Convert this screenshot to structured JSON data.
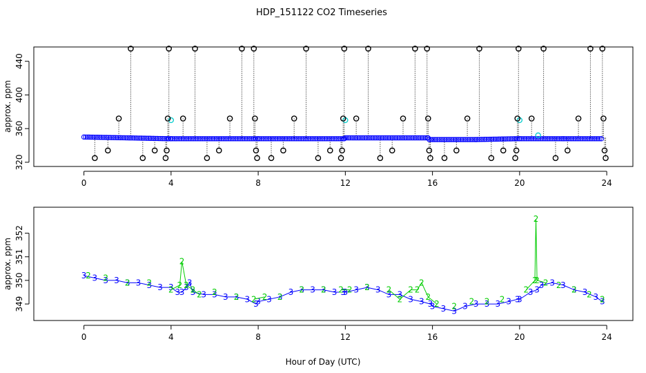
{
  "figure": {
    "title": "HDP_151122  CO2 Timeseries",
    "xlabel": "Hour of Day (UTC)"
  },
  "chart_data": [
    {
      "type": "scatter",
      "ylabel": "approx. ppm",
      "xlim": [
        -2.3,
        25.2
      ],
      "ylim": [
        315,
        457
      ],
      "xticks": [
        0,
        4,
        8,
        12,
        16,
        20,
        24
      ],
      "yticks": [
        320,
        360,
        400,
        440
      ],
      "colors": {
        "baseline": "#0000ff",
        "spike": "#000000",
        "mid": "#00cccc",
        "drop": "#808080"
      },
      "baseline": {
        "x": [
          0.0,
          2.0,
          3.85,
          3.9,
          4.0,
          6.0,
          7.9,
          8.0,
          10.0,
          11.95,
          12.0,
          14.0,
          15.8,
          15.85,
          16.0,
          18.0,
          19.9,
          20.0,
          22.0,
          23.8
        ],
        "y": [
          350,
          349,
          348,
          348,
          348,
          348,
          348,
          348,
          348,
          348,
          349,
          349,
          349,
          347,
          347,
          347,
          348,
          348,
          348,
          348
        ]
      },
      "spikes": [
        {
          "x": 0.5,
          "y": 325
        },
        {
          "x": 1.1,
          "y": 334
        },
        {
          "x": 1.6,
          "y": 372
        },
        {
          "x": 2.15,
          "y": 455
        },
        {
          "x": 2.7,
          "y": 325
        },
        {
          "x": 3.25,
          "y": 334
        },
        {
          "x": 3.75,
          "y": 325
        },
        {
          "x": 3.8,
          "y": 334
        },
        {
          "x": 3.85,
          "y": 372
        },
        {
          "x": 3.9,
          "y": 455
        },
        {
          "x": 4.55,
          "y": 372
        },
        {
          "x": 5.1,
          "y": 455
        },
        {
          "x": 5.65,
          "y": 325
        },
        {
          "x": 6.2,
          "y": 334
        },
        {
          "x": 6.7,
          "y": 372
        },
        {
          "x": 7.25,
          "y": 455
        },
        {
          "x": 7.8,
          "y": 455
        },
        {
          "x": 7.85,
          "y": 372
        },
        {
          "x": 7.9,
          "y": 334
        },
        {
          "x": 7.95,
          "y": 325
        },
        {
          "x": 8.6,
          "y": 325
        },
        {
          "x": 9.15,
          "y": 334
        },
        {
          "x": 9.65,
          "y": 372
        },
        {
          "x": 10.2,
          "y": 455
        },
        {
          "x": 10.75,
          "y": 325
        },
        {
          "x": 11.3,
          "y": 334
        },
        {
          "x": 11.8,
          "y": 325
        },
        {
          "x": 11.85,
          "y": 334
        },
        {
          "x": 11.9,
          "y": 372
        },
        {
          "x": 11.95,
          "y": 455
        },
        {
          "x": 12.5,
          "y": 372
        },
        {
          "x": 13.05,
          "y": 455
        },
        {
          "x": 13.6,
          "y": 325
        },
        {
          "x": 14.15,
          "y": 334
        },
        {
          "x": 14.65,
          "y": 372
        },
        {
          "x": 15.2,
          "y": 455
        },
        {
          "x": 15.75,
          "y": 455
        },
        {
          "x": 15.8,
          "y": 372
        },
        {
          "x": 15.85,
          "y": 334
        },
        {
          "x": 15.9,
          "y": 325
        },
        {
          "x": 16.55,
          "y": 325
        },
        {
          "x": 17.1,
          "y": 334
        },
        {
          "x": 17.6,
          "y": 372
        },
        {
          "x": 18.15,
          "y": 455
        },
        {
          "x": 18.7,
          "y": 325
        },
        {
          "x": 19.25,
          "y": 334
        },
        {
          "x": 19.8,
          "y": 325
        },
        {
          "x": 19.85,
          "y": 334
        },
        {
          "x": 19.9,
          "y": 372
        },
        {
          "x": 19.95,
          "y": 455
        },
        {
          "x": 20.55,
          "y": 372
        },
        {
          "x": 21.1,
          "y": 455
        },
        {
          "x": 21.65,
          "y": 325
        },
        {
          "x": 22.2,
          "y": 334
        },
        {
          "x": 22.7,
          "y": 372
        },
        {
          "x": 23.25,
          "y": 455
        },
        {
          "x": 23.8,
          "y": 455
        },
        {
          "x": 23.85,
          "y": 372
        },
        {
          "x": 23.9,
          "y": 334
        },
        {
          "x": 23.95,
          "y": 325
        }
      ],
      "mid_points": [
        {
          "x": 4.0,
          "y": 370
        },
        {
          "x": 12.0,
          "y": 370
        },
        {
          "x": 20.0,
          "y": 370
        },
        {
          "x": 20.85,
          "y": 352
        }
      ]
    },
    {
      "type": "line",
      "ylabel": "approx. ppm",
      "xlim": [
        -2.3,
        25.2
      ],
      "ylim": [
        348.3,
        353.1
      ],
      "xticks": [
        0,
        4,
        8,
        12,
        16,
        20,
        24
      ],
      "yticks": [
        349,
        350,
        351,
        352
      ],
      "colors": {
        "series_3": "#0000ff",
        "series_2": "#00cc00"
      },
      "series": [
        {
          "marker": "3",
          "x": [
            0.0,
            0.5,
            1.0,
            1.5,
            2.0,
            2.5,
            3.0,
            3.5,
            4.0,
            4.3,
            4.5,
            4.7,
            4.85,
            5.0,
            5.5,
            6.0,
            6.5,
            7.0,
            7.5,
            7.9,
            8.0,
            8.5,
            9.0,
            9.5,
            10.0,
            10.5,
            11.0,
            11.5,
            11.9,
            12.0,
            12.5,
            13.0,
            13.5,
            14.0,
            14.5,
            15.0,
            15.5,
            15.9,
            16.0,
            16.5,
            17.0,
            17.5,
            18.0,
            18.5,
            19.0,
            19.5,
            19.9,
            20.0,
            20.5,
            20.8,
            21.0,
            21.5,
            22.0,
            22.5,
            23.0,
            23.5,
            23.8
          ],
          "y": [
            350.2,
            350.1,
            350.0,
            350.0,
            349.9,
            349.9,
            349.8,
            349.7,
            349.7,
            349.5,
            349.5,
            349.7,
            349.9,
            349.5,
            349.4,
            349.4,
            349.3,
            349.3,
            349.2,
            349.0,
            349.1,
            349.2,
            349.3,
            349.5,
            349.6,
            349.6,
            349.6,
            349.5,
            349.5,
            349.5,
            349.6,
            349.7,
            349.6,
            349.4,
            349.4,
            349.2,
            349.1,
            349.0,
            348.9,
            348.8,
            348.7,
            348.9,
            349.0,
            349.0,
            349.0,
            349.1,
            349.2,
            349.2,
            349.5,
            349.6,
            349.8,
            349.9,
            349.8,
            349.6,
            349.5,
            349.3,
            349.1
          ]
        },
        {
          "marker": "2",
          "x": [
            0.2,
            1.0,
            2.0,
            3.0,
            4.0,
            4.4,
            4.5,
            4.7,
            5.0,
            5.3,
            6.0,
            7.0,
            7.8,
            8.3,
            9.0,
            10.0,
            11.0,
            11.8,
            12.2,
            13.0,
            14.0,
            14.5,
            15.0,
            15.3,
            15.5,
            15.8,
            16.2,
            17.0,
            17.8,
            18.5,
            19.2,
            20.3,
            20.7,
            20.75,
            20.8,
            21.2,
            21.8,
            22.5,
            23.2,
            23.8
          ],
          "y": [
            350.2,
            350.1,
            349.9,
            349.9,
            349.6,
            349.8,
            350.8,
            349.8,
            349.6,
            349.4,
            349.5,
            349.3,
            349.2,
            349.3,
            349.3,
            349.6,
            349.6,
            349.6,
            349.6,
            349.7,
            349.6,
            349.2,
            349.6,
            349.6,
            349.9,
            349.3,
            349.0,
            348.9,
            349.1,
            349.1,
            349.2,
            349.6,
            350.0,
            352.6,
            350.0,
            349.9,
            349.8,
            349.6,
            349.4,
            349.2
          ]
        }
      ]
    }
  ]
}
